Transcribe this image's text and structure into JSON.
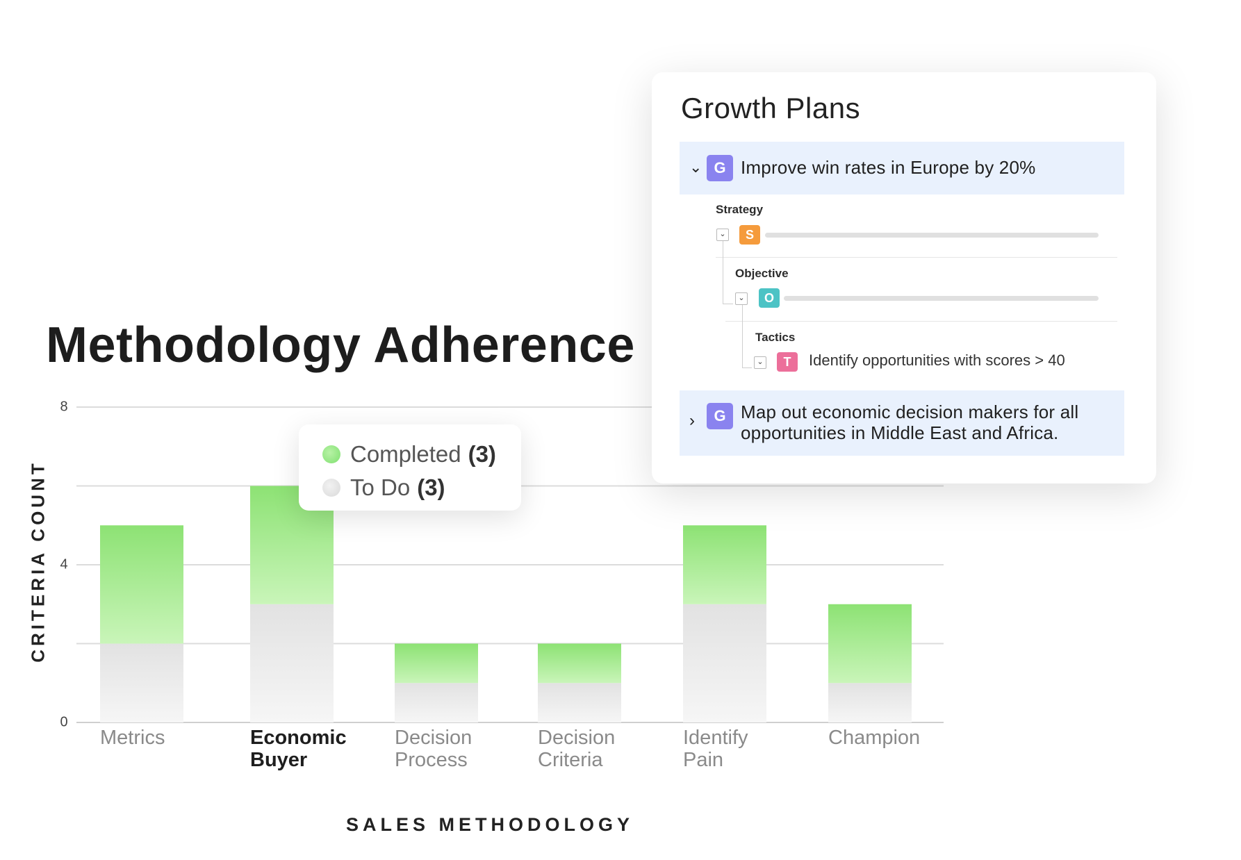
{
  "chart_data": {
    "type": "bar",
    "stacked": true,
    "title": "Methodology Adherence",
    "xlabel": "SALES METHODOLOGY",
    "ylabel": "CRITERIA COUNT",
    "ylim": [
      0,
      8
    ],
    "yticks": [
      0,
      4,
      8
    ],
    "grid": true,
    "categories": [
      "Metrics",
      "Economic\nBuyer",
      "Decision\nProcess",
      "Decision\nCriteria",
      "Identify\nPain",
      "Champion"
    ],
    "active_category": "Economic\nBuyer",
    "series": [
      {
        "name": "To Do",
        "values": [
          2,
          3,
          1,
          1,
          3,
          1
        ],
        "color": "#e8e8e8"
      },
      {
        "name": "Completed",
        "values": [
          3,
          3,
          1,
          1,
          2,
          2
        ],
        "color": "#8fe37c"
      }
    ]
  },
  "tooltip": {
    "completed_label": "Completed",
    "completed_count": "(3)",
    "todo_label": "To Do",
    "todo_count": "(3)"
  },
  "growth_plans": {
    "title": "Growth Plans",
    "goal1": {
      "badge": "G",
      "text": "Improve win rates in Europe by 20%"
    },
    "strategy_label": "Strategy",
    "strategy_badge": "S",
    "objective_label": "Objective",
    "objective_badge": "O",
    "tactics_label": "Tactics",
    "tactic_badge": "T",
    "tactic_text": "Identify opportunities with scores > 40",
    "goal2": {
      "badge": "G",
      "line1": "Map out economic decision makers for all",
      "line2": "opportunities in Middle East and Africa."
    },
    "colors": {
      "goal": "#8a83ef",
      "strategy": "#f59b3c",
      "objective": "#4cc3c5",
      "tactic": "#ec6f9a",
      "row_bg": "#e9f1fd"
    }
  }
}
